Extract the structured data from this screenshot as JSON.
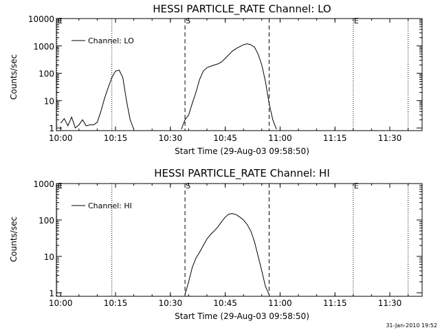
{
  "footer_date": "31-Jan-2010 19:52",
  "chart_data": [
    {
      "type": "line",
      "title": "HESSI PARTICLE_RATE Channel: LO",
      "xlabel": "Start Time (29-Aug-03 09:58:50)",
      "ylabel": "Counts/sec",
      "yscale": "log",
      "xlim": [
        "09:58:50",
        "11:38:50"
      ],
      "ylim": [
        0.8,
        10000
      ],
      "xticks": [
        "10:00",
        "10:15",
        "10:30",
        "10:45",
        "11:00",
        "11:15",
        "11:30"
      ],
      "yticks": [
        "1",
        "10",
        "100",
        "1000",
        "10000"
      ],
      "legend": "top-left",
      "markers": [
        {
          "label": "E",
          "time": "09:59",
          "style": "dotted"
        },
        {
          "label": "",
          "time": "10:14",
          "style": "dotted"
        },
        {
          "label": "S",
          "time": "10:34",
          "style": "dashed"
        },
        {
          "label": "",
          "time": "10:57",
          "style": "dashed"
        },
        {
          "label": "E",
          "time": "11:20",
          "style": "dotted"
        },
        {
          "label": "",
          "time": "11:35",
          "style": "dotted"
        }
      ],
      "series": [
        {
          "name": "Channel: LO",
          "segments": [
            {
              "x": [
                "10:00",
                "10:01",
                "10:02",
                "10:03",
                "10:04",
                "10:05",
                "10:06",
                "10:07",
                "10:08",
                "10:09",
                "10:10",
                "10:11",
                "10:12",
                "10:13",
                "10:14",
                "10:15",
                "10:16",
                "10:17",
                "10:18",
                "10:19",
                "10:20"
              ],
              "y": [
                1.5,
                2.2,
                1.2,
                2.5,
                1.0,
                1.3,
                2.0,
                1.2,
                1.3,
                1.3,
                1.6,
                4,
                12,
                30,
                70,
                120,
                130,
                70,
                10,
                2,
                0.9
              ]
            },
            {
              "x": [
                "10:33",
                "10:34",
                "10:35",
                "10:36",
                "10:37",
                "10:38",
                "10:39",
                "10:40",
                "10:41",
                "10:42",
                "10:43",
                "10:44",
                "10:45",
                "10:46",
                "10:47",
                "10:48",
                "10:49",
                "10:50",
                "10:51",
                "10:52",
                "10:53",
                "10:54",
                "10:55",
                "10:56",
                "10:57",
                "10:58",
                "10:59"
              ],
              "y": [
                0.9,
                2,
                3,
                8,
                20,
                60,
                120,
                160,
                180,
                200,
                220,
                260,
                350,
                480,
                650,
                800,
                950,
                1100,
                1200,
                1100,
                900,
                500,
                200,
                50,
                8,
                2,
                0.9
              ]
            }
          ]
        }
      ]
    },
    {
      "type": "line",
      "title": "HESSI PARTICLE_RATE Channel: HI",
      "xlabel": "Start Time (29-Aug-03 09:58:50)",
      "ylabel": "Counts/sec",
      "yscale": "log",
      "xlim": [
        "09:58:50",
        "11:38:50"
      ],
      "ylim": [
        0.8,
        1000
      ],
      "xticks": [
        "10:00",
        "10:15",
        "10:30",
        "10:45",
        "11:00",
        "11:15",
        "11:30"
      ],
      "yticks": [
        "1",
        "10",
        "100",
        "1000"
      ],
      "legend": "top-left",
      "markers": [
        {
          "label": "E",
          "time": "09:59",
          "style": "dotted"
        },
        {
          "label": "",
          "time": "10:14",
          "style": "dotted"
        },
        {
          "label": "S",
          "time": "10:34",
          "style": "dashed"
        },
        {
          "label": "",
          "time": "10:57",
          "style": "dashed"
        },
        {
          "label": "E",
          "time": "11:20",
          "style": "dotted"
        },
        {
          "label": "",
          "time": "11:35",
          "style": "dotted"
        }
      ],
      "series": [
        {
          "name": "Channel: HI",
          "segments": [
            {
              "x": [
                "10:34",
                "10:35",
                "10:36",
                "10:37",
                "10:38",
                "10:39",
                "10:40",
                "10:41",
                "10:42",
                "10:43",
                "10:44",
                "10:45",
                "10:46",
                "10:47",
                "10:48",
                "10:49",
                "10:50",
                "10:51",
                "10:52",
                "10:53",
                "10:54",
                "10:55",
                "10:56",
                "10:57"
              ],
              "y": [
                0.9,
                2,
                5,
                9,
                13,
                20,
                30,
                40,
                50,
                65,
                90,
                120,
                145,
                150,
                140,
                120,
                100,
                75,
                50,
                25,
                10,
                4,
                1.5,
                0.9
              ]
            }
          ]
        }
      ]
    }
  ]
}
